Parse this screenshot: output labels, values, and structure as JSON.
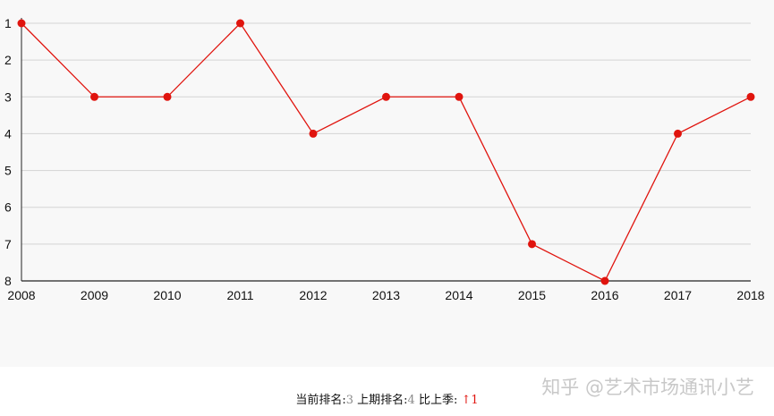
{
  "chart_data": {
    "type": "line",
    "x": [
      "2008",
      "2009",
      "2010",
      "2011",
      "2012",
      "2013",
      "2014",
      "2015",
      "2016",
      "2017",
      "2018"
    ],
    "values": [
      1,
      3,
      3,
      1,
      4,
      3,
      3,
      7,
      8,
      4,
      3
    ],
    "y_ticks": [
      "1",
      "2",
      "3",
      "4",
      "5",
      "6",
      "7",
      "8"
    ],
    "ylim": [
      1,
      8
    ],
    "y_inverted": true,
    "grid": true,
    "line_color": "#e0140e",
    "marker_color": "#e0140e",
    "background": "#f8f8f8",
    "title": "",
    "xlabel": "",
    "ylabel": ""
  },
  "footer": {
    "current_label": "当前排名:",
    "current_value": "3",
    "previous_label": "上期排名:",
    "previous_value": "4",
    "change_label": "比上季:",
    "change_arrow": "↑",
    "change_value": "1"
  },
  "watermark": "知乎 @艺术市场通讯小艺"
}
